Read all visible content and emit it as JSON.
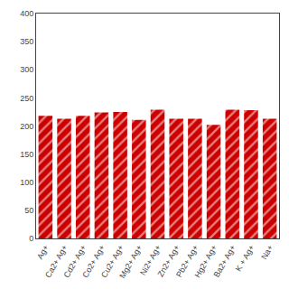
{
  "chart_data": {
    "type": "bar",
    "categories": [
      "Ag+",
      "Ca2+ Ag+",
      "Cd2+ Ag+",
      "Co2+ Ag+",
      "Cu2+ Ag+",
      "Mg2+ Ag+",
      "Ni2+ Ag+",
      "Zn2+ Ag+",
      "Pb2+ Ag+",
      "Hg2+ Ag+",
      "Ba2+ Ag+",
      "K + Ag+",
      "Na+"
    ],
    "values": [
      218,
      213,
      218,
      224,
      225,
      211,
      229,
      213,
      213,
      202,
      229,
      228,
      213
    ],
    "color": "#cc0000",
    "ylim": [
      0,
      400
    ],
    "yticks": [
      0,
      50,
      100,
      150,
      200,
      250,
      300,
      350,
      400
    ],
    "grid": false
  }
}
